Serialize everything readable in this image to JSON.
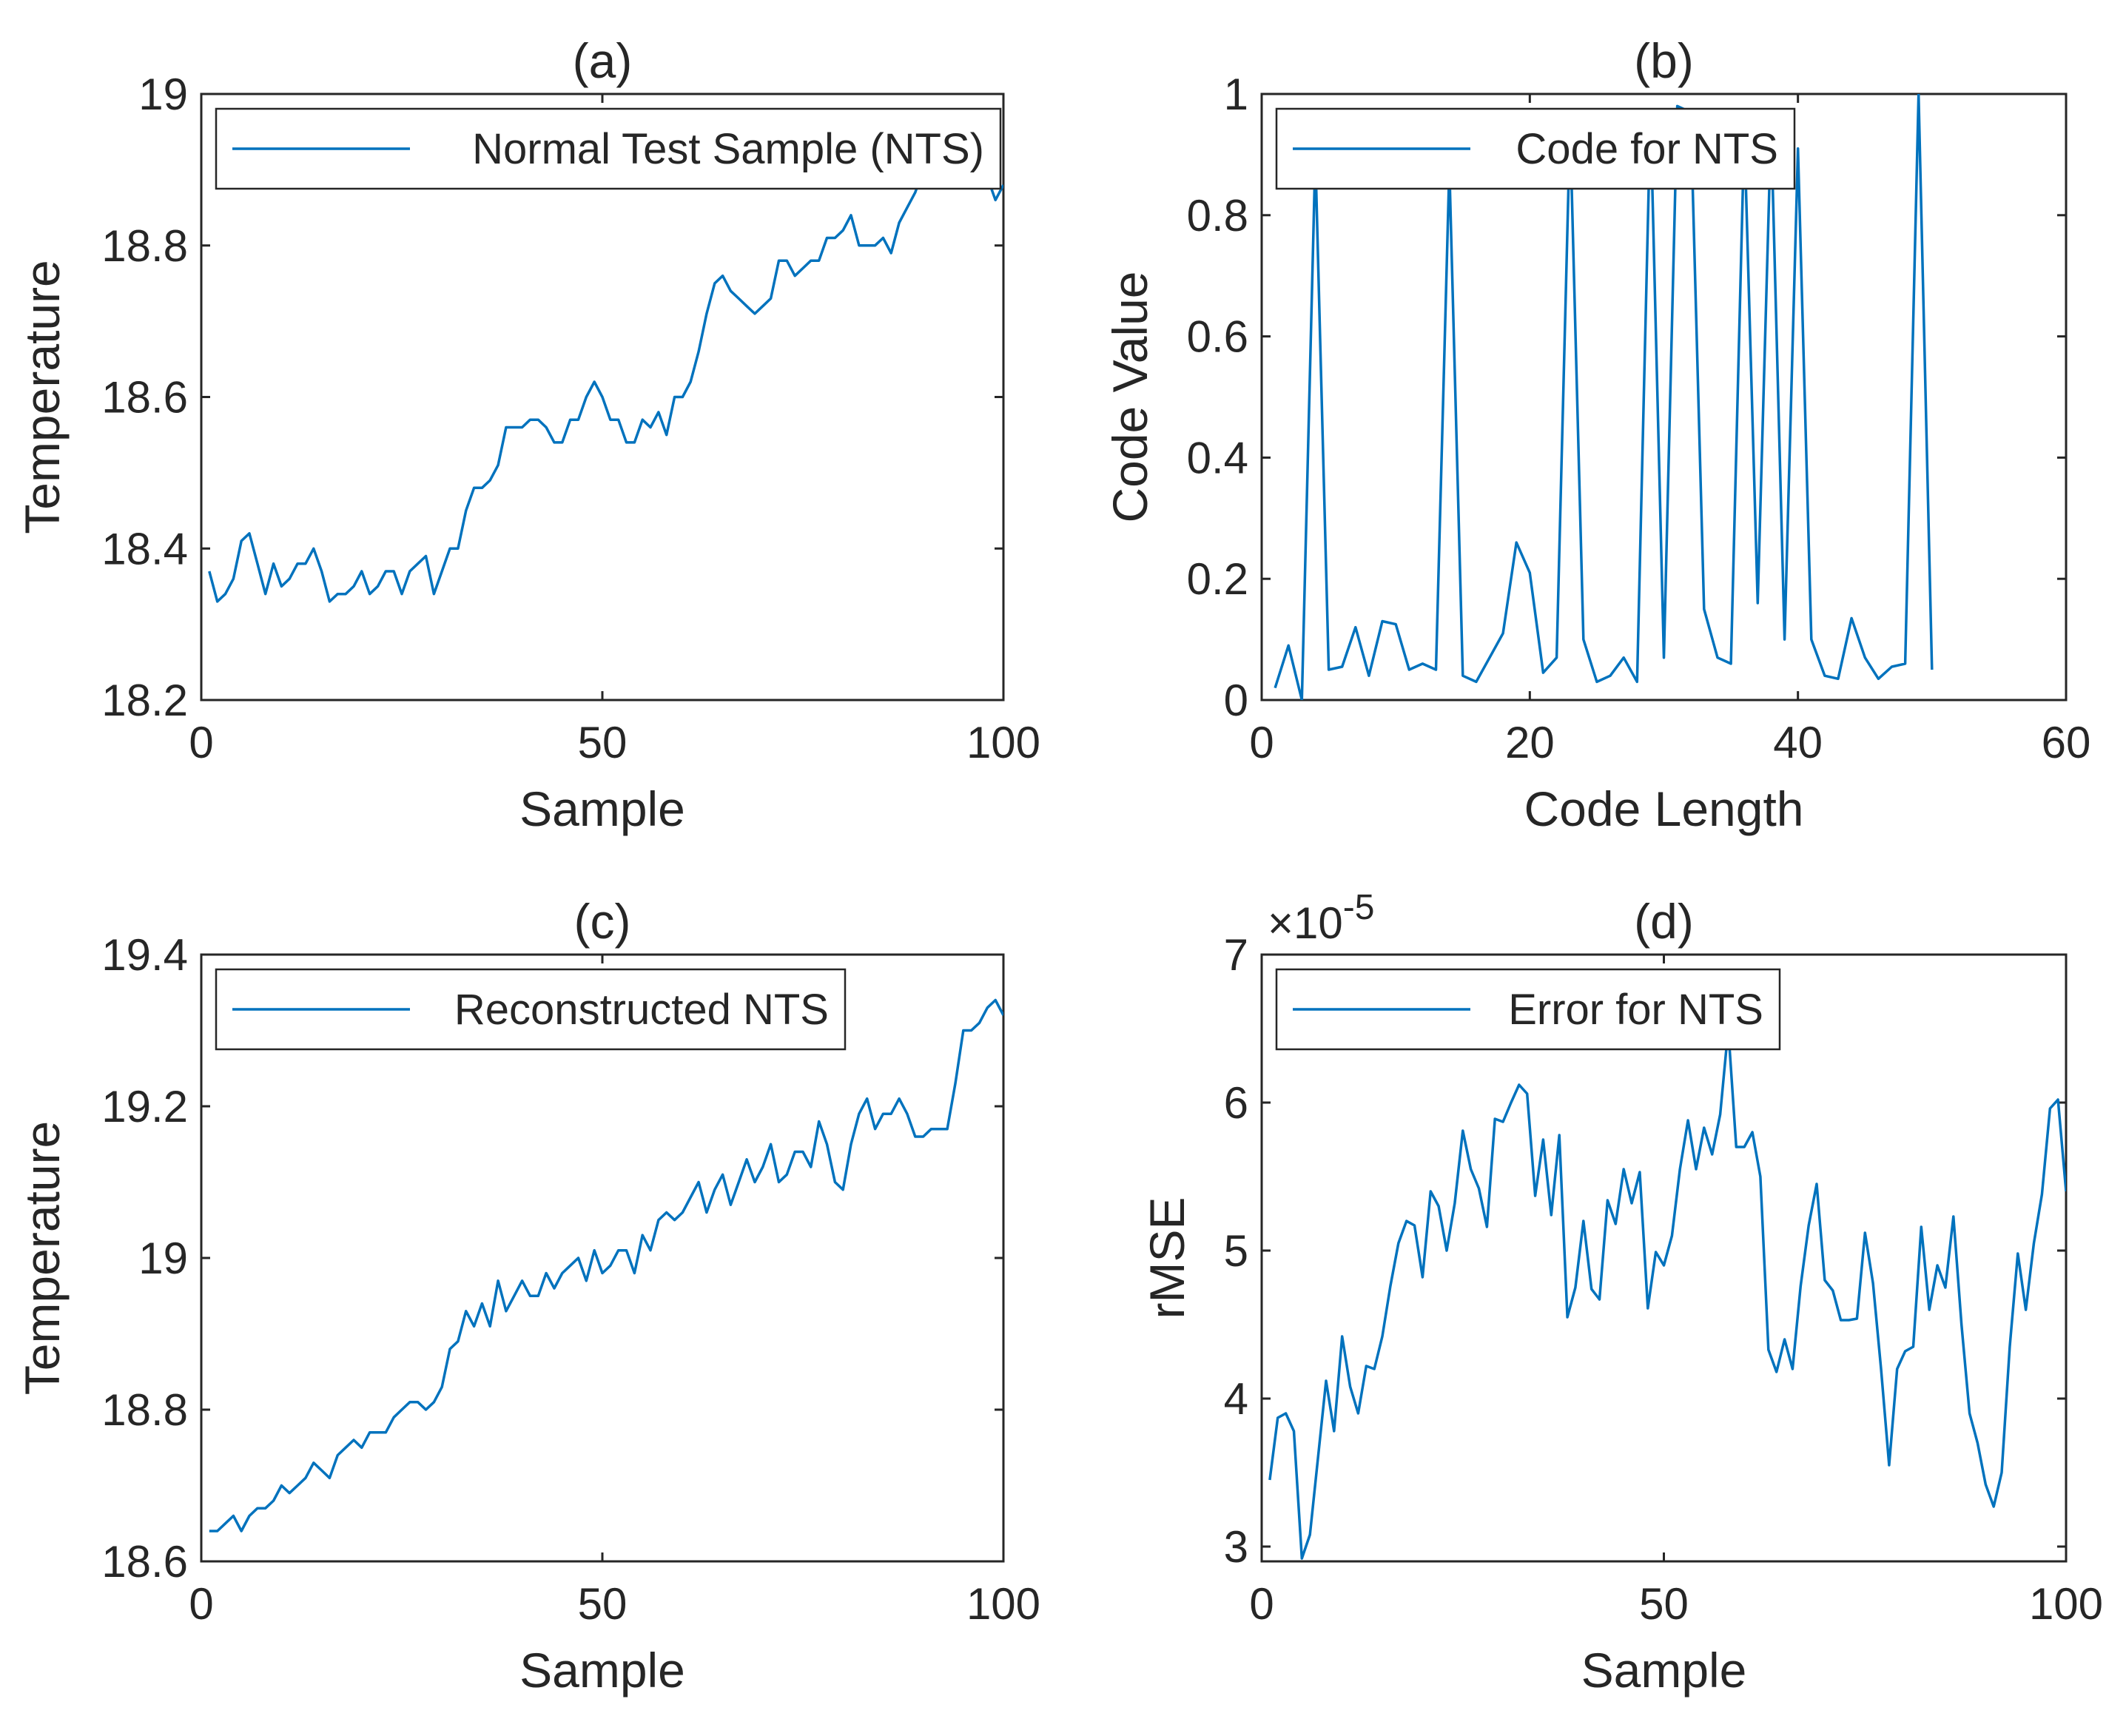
{
  "line_color": "#0072BD",
  "chart_data": [
    {
      "id": "a",
      "type": "line",
      "title": "(a)",
      "xlabel": "Sample",
      "ylabel": "Temperature",
      "xlim": [
        0,
        100
      ],
      "ylim": [
        18.2,
        19.0
      ],
      "xticks": [
        0,
        50,
        100
      ],
      "xtick_labels": [
        "0",
        "50",
        "100"
      ],
      "yticks": [
        18.2,
        18.4,
        18.6,
        18.8,
        19.0
      ],
      "ytick_labels": [
        "18.2",
        "18.4",
        "18.6",
        "18.8",
        "19"
      ],
      "exponent_label": "",
      "grid": false,
      "legend_position": "top-left",
      "series": [
        {
          "name": "Normal Test Sample (NTS)",
          "x": [
            1,
            2,
            3,
            4,
            5,
            6,
            7,
            8,
            9,
            10,
            11,
            12,
            13,
            14,
            15,
            16,
            17,
            18,
            19,
            20,
            21,
            22,
            23,
            24,
            25,
            26,
            27,
            28,
            29,
            30,
            31,
            32,
            33,
            34,
            35,
            36,
            37,
            38,
            39,
            40,
            41,
            42,
            43,
            44,
            45,
            46,
            47,
            48,
            49,
            50,
            51,
            52,
            53,
            54,
            55,
            56,
            57,
            58,
            59,
            60,
            61,
            62,
            63,
            64,
            65,
            66,
            67,
            68,
            69,
            70,
            71,
            72,
            73,
            74,
            75,
            76,
            77,
            78,
            79,
            80,
            81,
            82,
            83,
            84,
            85,
            86,
            87,
            88,
            89,
            90,
            91,
            92,
            93,
            94,
            95,
            96,
            97,
            98,
            99,
            100
          ],
          "values": [
            18.37,
            18.33,
            18.34,
            18.36,
            18.41,
            18.42,
            18.38,
            18.34,
            18.38,
            18.35,
            18.36,
            18.38,
            18.38,
            18.4,
            18.37,
            18.33,
            18.34,
            18.34,
            18.35,
            18.37,
            18.34,
            18.35,
            18.37,
            18.37,
            18.34,
            18.37,
            18.38,
            18.39,
            18.34,
            18.37,
            18.4,
            18.4,
            18.45,
            18.48,
            18.48,
            18.49,
            18.51,
            18.56,
            18.56,
            18.56,
            18.57,
            18.57,
            18.56,
            18.54,
            18.54,
            18.57,
            18.57,
            18.6,
            18.62,
            18.6,
            18.57,
            18.57,
            18.54,
            18.54,
            18.57,
            18.56,
            18.58,
            18.55,
            18.6,
            18.6,
            18.62,
            18.66,
            18.71,
            18.75,
            18.76,
            18.74,
            18.73,
            18.72,
            18.71,
            18.72,
            18.73,
            18.78,
            18.78,
            18.76,
            18.77,
            18.78,
            18.78,
            18.81,
            18.81,
            18.82,
            18.84,
            18.8,
            18.8,
            18.8,
            18.81,
            18.79,
            18.83,
            18.85,
            18.87,
            18.9,
            18.92,
            18.94,
            18.94,
            18.95,
            18.97,
            18.95,
            18.92,
            18.89,
            18.86,
            18.88
          ]
        }
      ]
    },
    {
      "id": "b",
      "type": "line",
      "title": "(b)",
      "xlabel": "Code Length",
      "ylabel": "Code Value",
      "xlim": [
        0,
        60
      ],
      "ylim": [
        0,
        1
      ],
      "xticks": [
        0,
        20,
        40,
        60
      ],
      "xtick_labels": [
        "0",
        "20",
        "40",
        "60"
      ],
      "yticks": [
        0,
        0.2,
        0.4,
        0.6,
        0.8,
        1.0
      ],
      "ytick_labels": [
        "0",
        "0.2",
        "0.4",
        "0.6",
        "0.8",
        "1"
      ],
      "exponent_label": "",
      "grid": false,
      "legend_position": "top-left",
      "series": [
        {
          "name": "Code for NTS",
          "x": [
            1,
            2,
            3,
            4,
            5,
            6,
            7,
            8,
            9,
            10,
            11,
            12,
            13,
            14,
            15,
            16,
            17,
            18,
            19,
            20,
            21,
            22,
            23,
            24,
            25,
            26,
            27,
            28,
            29,
            30,
            31,
            32,
            33,
            34,
            35,
            36,
            37,
            38,
            39,
            40,
            41,
            42,
            43,
            44,
            45,
            46,
            47,
            48,
            49,
            50
          ],
          "values": [
            0.02,
            0.09,
            0.0,
            0.9,
            0.05,
            0.055,
            0.12,
            0.04,
            0.13,
            0.125,
            0.05,
            0.06,
            0.05,
            0.88,
            0.04,
            0.03,
            0.07,
            0.11,
            0.26,
            0.21,
            0.045,
            0.07,
            0.95,
            0.1,
            0.03,
            0.04,
            0.07,
            0.03,
            0.97,
            0.07,
            0.98,
            0.97,
            0.15,
            0.07,
            0.06,
            0.94,
            0.16,
            0.95,
            0.1,
            0.91,
            0.1,
            0.04,
            0.035,
            0.135,
            0.07,
            0.035,
            0.055,
            0.06,
            1.0,
            0.05
          ]
        }
      ]
    },
    {
      "id": "c",
      "type": "line",
      "title": "(c)",
      "xlabel": "Sample",
      "ylabel": "Temperature",
      "xlim": [
        0,
        100
      ],
      "ylim": [
        18.6,
        19.4
      ],
      "xticks": [
        0,
        50,
        100
      ],
      "xtick_labels": [
        "0",
        "50",
        "100"
      ],
      "yticks": [
        18.6,
        18.8,
        19.0,
        19.2,
        19.4
      ],
      "ytick_labels": [
        "18.6",
        "18.8",
        "19",
        "19.2",
        "19.4"
      ],
      "exponent_label": "",
      "grid": false,
      "legend_position": "top-left",
      "series": [
        {
          "name": "Reconstructed NTS",
          "x": [
            1,
            2,
            3,
            4,
            5,
            6,
            7,
            8,
            9,
            10,
            11,
            12,
            13,
            14,
            15,
            16,
            17,
            18,
            19,
            20,
            21,
            22,
            23,
            24,
            25,
            26,
            27,
            28,
            29,
            30,
            31,
            32,
            33,
            34,
            35,
            36,
            37,
            38,
            39,
            40,
            41,
            42,
            43,
            44,
            45,
            46,
            47,
            48,
            49,
            50,
            51,
            52,
            53,
            54,
            55,
            56,
            57,
            58,
            59,
            60,
            61,
            62,
            63,
            64,
            65,
            66,
            67,
            68,
            69,
            70,
            71,
            72,
            73,
            74,
            75,
            76,
            77,
            78,
            79,
            80,
            81,
            82,
            83,
            84,
            85,
            86,
            87,
            88,
            89,
            90,
            91,
            92,
            93,
            94,
            95,
            96,
            97,
            98,
            99,
            100
          ],
          "values": [
            18.64,
            18.64,
            18.65,
            18.66,
            18.64,
            18.66,
            18.67,
            18.67,
            18.68,
            18.7,
            18.69,
            18.7,
            18.71,
            18.73,
            18.72,
            18.71,
            18.74,
            18.75,
            18.76,
            18.75,
            18.77,
            18.77,
            18.77,
            18.79,
            18.8,
            18.81,
            18.81,
            18.8,
            18.81,
            18.83,
            18.88,
            18.89,
            18.93,
            18.91,
            18.94,
            18.91,
            18.97,
            18.93,
            18.95,
            18.97,
            18.95,
            18.95,
            18.98,
            18.96,
            18.98,
            18.99,
            19.0,
            18.97,
            19.01,
            18.98,
            18.99,
            19.01,
            19.01,
            18.98,
            19.03,
            19.01,
            19.05,
            19.06,
            19.05,
            19.06,
            19.08,
            19.1,
            19.06,
            19.09,
            19.11,
            19.07,
            19.1,
            19.13,
            19.1,
            19.12,
            19.15,
            19.1,
            19.11,
            19.14,
            19.14,
            19.12,
            19.18,
            19.15,
            19.1,
            19.09,
            19.15,
            19.19,
            19.21,
            19.17,
            19.19,
            19.19,
            19.21,
            19.19,
            19.16,
            19.16,
            19.17,
            19.17,
            19.17,
            19.23,
            19.3,
            19.3,
            19.31,
            19.33,
            19.34,
            19.32
          ]
        }
      ]
    },
    {
      "id": "d",
      "type": "line",
      "title": "(d)",
      "xlabel": "Sample",
      "ylabel": "rMSE",
      "xlim": [
        0,
        100
      ],
      "ylim": [
        2.9,
        7.0
      ],
      "xticks": [
        0,
        50,
        100
      ],
      "xtick_labels": [
        "0",
        "50",
        "100"
      ],
      "yticks": [
        3,
        4,
        5,
        6,
        7
      ],
      "ytick_labels": [
        "3",
        "4",
        "5",
        "6",
        "7"
      ],
      "exponent_label": "×10",
      "exponent_power": "-5",
      "grid": false,
      "legend_position": "top-left",
      "series": [
        {
          "name": "Error for NTS",
          "x": [
            1,
            2,
            3,
            4,
            5,
            6,
            7,
            8,
            9,
            10,
            11,
            12,
            13,
            14,
            15,
            16,
            17,
            18,
            19,
            20,
            21,
            22,
            23,
            24,
            25,
            26,
            27,
            28,
            29,
            30,
            31,
            32,
            33,
            34,
            35,
            36,
            37,
            38,
            39,
            40,
            41,
            42,
            43,
            44,
            45,
            46,
            47,
            48,
            49,
            50,
            51,
            52,
            53,
            54,
            55,
            56,
            57,
            58,
            59,
            60,
            61,
            62,
            63,
            64,
            65,
            66,
            67,
            68,
            69,
            70,
            71,
            72,
            73,
            74,
            75,
            76,
            77,
            78,
            79,
            80,
            81,
            82,
            83,
            84,
            85,
            86,
            87,
            88,
            89,
            90,
            91,
            92,
            93,
            94,
            95,
            96,
            97,
            98,
            99,
            100
          ],
          "values": [
            3.45,
            3.87,
            3.9,
            3.78,
            2.92,
            3.08,
            3.6,
            4.12,
            3.78,
            4.42,
            4.08,
            3.9,
            4.22,
            4.2,
            4.42,
            4.76,
            5.05,
            5.2,
            5.17,
            4.82,
            5.4,
            5.3,
            5.0,
            5.32,
            5.81,
            5.55,
            5.42,
            5.16,
            5.89,
            5.87,
            6.0,
            6.12,
            6.06,
            5.37,
            5.75,
            5.24,
            5.78,
            4.55,
            4.75,
            5.2,
            4.74,
            4.67,
            5.34,
            5.18,
            5.55,
            5.32,
            5.53,
            4.61,
            4.99,
            4.9,
            5.1,
            5.55,
            5.88,
            5.55,
            5.83,
            5.65,
            5.92,
            6.5,
            5.7,
            5.7,
            5.8,
            5.5,
            4.33,
            4.18,
            4.4,
            4.2,
            4.76,
            5.17,
            5.45,
            4.8,
            4.73,
            4.53,
            4.53,
            4.54,
            5.12,
            4.78,
            4.2,
            3.55,
            4.2,
            4.32,
            4.35,
            5.16,
            4.6,
            4.9,
            4.75,
            5.23,
            4.5,
            3.9,
            3.7,
            3.42,
            3.27,
            3.5,
            4.35,
            4.98,
            4.6,
            5.05,
            5.38,
            5.96,
            6.02,
            5.4
          ]
        }
      ]
    }
  ]
}
